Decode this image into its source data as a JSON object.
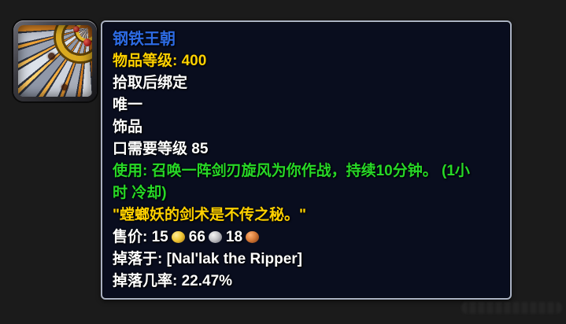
{
  "colors": {
    "page_background": "#1b1b1b",
    "tooltip_background": "#090d1e",
    "tooltip_border": "#a9b1c2",
    "title_blue": "#2d6be4",
    "gold_text": "#ffd100",
    "green_text": "#27d827",
    "white_text": "#ffffff"
  },
  "item_icon": {
    "name": "fanned-sword-blades-icon"
  },
  "tooltip": {
    "title": "钢铁王朝",
    "item_level": "物品等级: 400",
    "bind_on_pickup": "拾取后绑定",
    "unique": "唯一",
    "slot": "饰品",
    "requires_level": "口需要等级 85",
    "use_effect_line1": "使用: 召唤一阵剑刃旋风为你作战，持续10分钟。 (1小",
    "use_effect_line2": "时 冷却)",
    "flavor_text": "\"螳螂妖的剑术是不传之秘。\"",
    "sell_price": {
      "label": "售价: ",
      "gold": "15",
      "silver": "66",
      "copper": "18"
    },
    "drop_source": "掉落于: [Nal'lak the Ripper]",
    "drop_chance": "掉落几率: 22.47%"
  }
}
